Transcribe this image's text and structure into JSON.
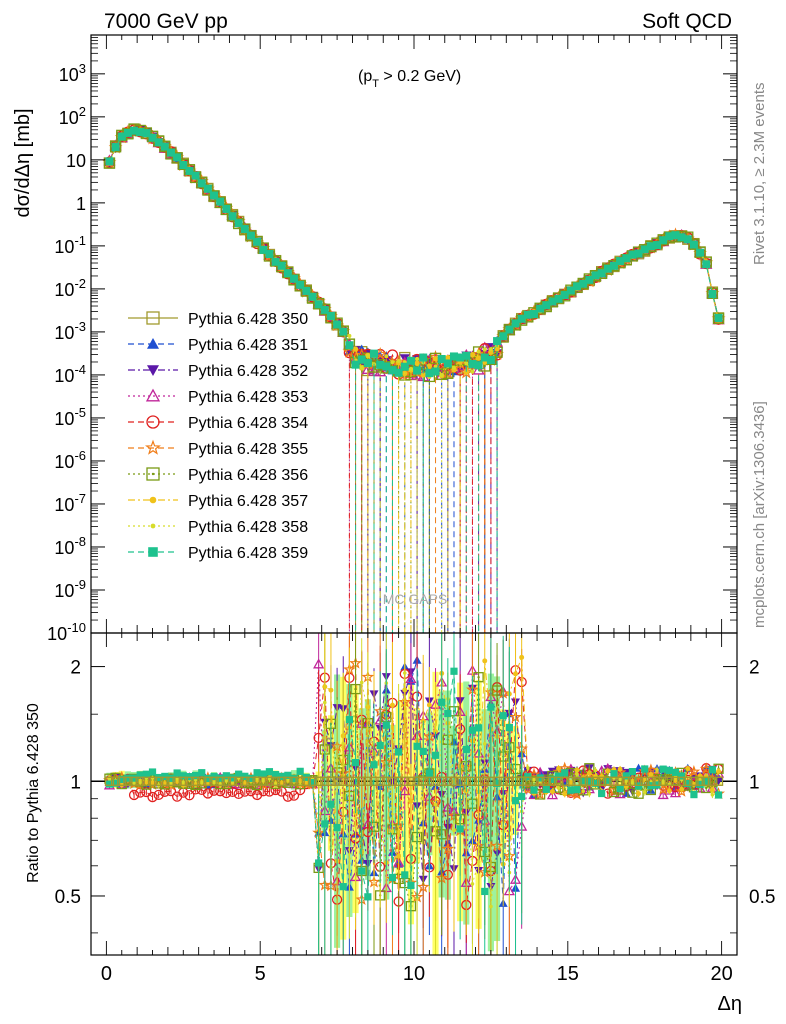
{
  "header": {
    "left": "7000 GeV pp",
    "right": "Soft QCD"
  },
  "side_labels": {
    "rivet": "Rivet 3.1.10, ≥ 2.3M events",
    "mcplots": "mcplots.cern.ch [arXiv:1306.3436]"
  },
  "watermark": "MC GAPS",
  "chart_data": [
    {
      "type": "line",
      "title": "",
      "annotation": "(p_T > 0.2 GeV)",
      "xlabel": "",
      "ylabel": "dσ/dΔη [mb]",
      "yscale": "log",
      "xlim": [
        -0.5,
        20.5
      ],
      "ylim": [
        1e-10,
        8000
      ],
      "y_tick_labels": [
        "10^{-10}",
        "10^{-9}",
        "10^{-8}",
        "10^{-7}",
        "10^{-6}",
        "10^{-5}",
        "10^{-4}",
        "10^{-3}",
        "10^{-2}",
        "10^{-1}",
        "1",
        "10",
        "10^{2}",
        "10^{3}"
      ],
      "legend_position": "left-middle",
      "series": [
        {
          "name": "Pythia 6.428 350",
          "color": "#a29a2e",
          "marker": "open-square",
          "dash": "solid"
        },
        {
          "name": "Pythia 6.428 351",
          "color": "#1f4fd1",
          "marker": "triangle-up",
          "dash": "dashed"
        },
        {
          "name": "Pythia 6.428 352",
          "color": "#5b18a8",
          "marker": "triangle-down",
          "dash": "dashdot"
        },
        {
          "name": "Pythia 6.428 353",
          "color": "#c0259a",
          "marker": "open-triangle-up",
          "dash": "dotted"
        },
        {
          "name": "Pythia 6.428 354",
          "color": "#e0201f",
          "marker": "open-circle",
          "dash": "dashed"
        },
        {
          "name": "Pythia 6.428 355",
          "color": "#f07d19",
          "marker": "star",
          "dash": "dashed"
        },
        {
          "name": "Pythia 6.428 356",
          "color": "#7a9a14",
          "marker": "open-square-dot",
          "dash": "dotted"
        },
        {
          "name": "Pythia 6.428 357",
          "color": "#f0c21a",
          "marker": "dot",
          "dash": "dashdot"
        },
        {
          "name": "Pythia 6.428 358",
          "color": "#d7dc2a",
          "marker": "small-dot",
          "dash": "dotted"
        },
        {
          "name": "Pythia 6.428 359",
          "color": "#1ec28e",
          "marker": "square",
          "dash": "dashed"
        }
      ],
      "reference_curve": {
        "x": [
          0.1,
          0.3,
          0.5,
          0.8,
          1.0,
          1.3,
          1.6,
          2.0,
          2.5,
          3.0,
          3.5,
          4.0,
          4.5,
          5.0,
          5.5,
          6.0,
          6.5,
          7.0,
          7.5,
          7.8,
          8.0,
          8.5,
          9.0,
          9.5,
          10.0,
          10.5,
          11.0,
          11.5,
          12.0,
          12.5,
          12.8,
          13.0,
          13.5,
          14.0,
          14.5,
          15.0,
          15.5,
          16.0,
          16.5,
          17.0,
          17.5,
          18.0,
          18.3,
          18.6,
          18.9,
          19.2,
          19.5,
          19.7,
          19.9
        ],
        "y": [
          9,
          20,
          35,
          48,
          50,
          42,
          30,
          17,
          8,
          3.5,
          1.5,
          0.6,
          0.25,
          0.1,
          0.045,
          0.02,
          0.009,
          0.004,
          0.0015,
          0.0008,
          0.0003,
          0.0002,
          0.00018,
          0.00017,
          0.00016,
          0.00015,
          0.00016,
          0.00018,
          0.0002,
          0.0003,
          0.0006,
          0.001,
          0.002,
          0.003,
          0.005,
          0.008,
          0.013,
          0.022,
          0.035,
          0.055,
          0.08,
          0.12,
          0.16,
          0.18,
          0.15,
          0.09,
          0.04,
          0.008,
          0.002
        ]
      }
    },
    {
      "type": "line",
      "title": "",
      "xlabel": "Δη",
      "ylabel": "Ratio to Pythia 6.428 350",
      "yscale": "log",
      "xlim": [
        -0.5,
        20.5
      ],
      "ylim": [
        0.35,
        2.45
      ],
      "x_ticks": [
        0,
        5,
        10,
        15,
        20
      ],
      "y_ticks": [
        0.5,
        1,
        2
      ],
      "reference_line": 1
    }
  ]
}
